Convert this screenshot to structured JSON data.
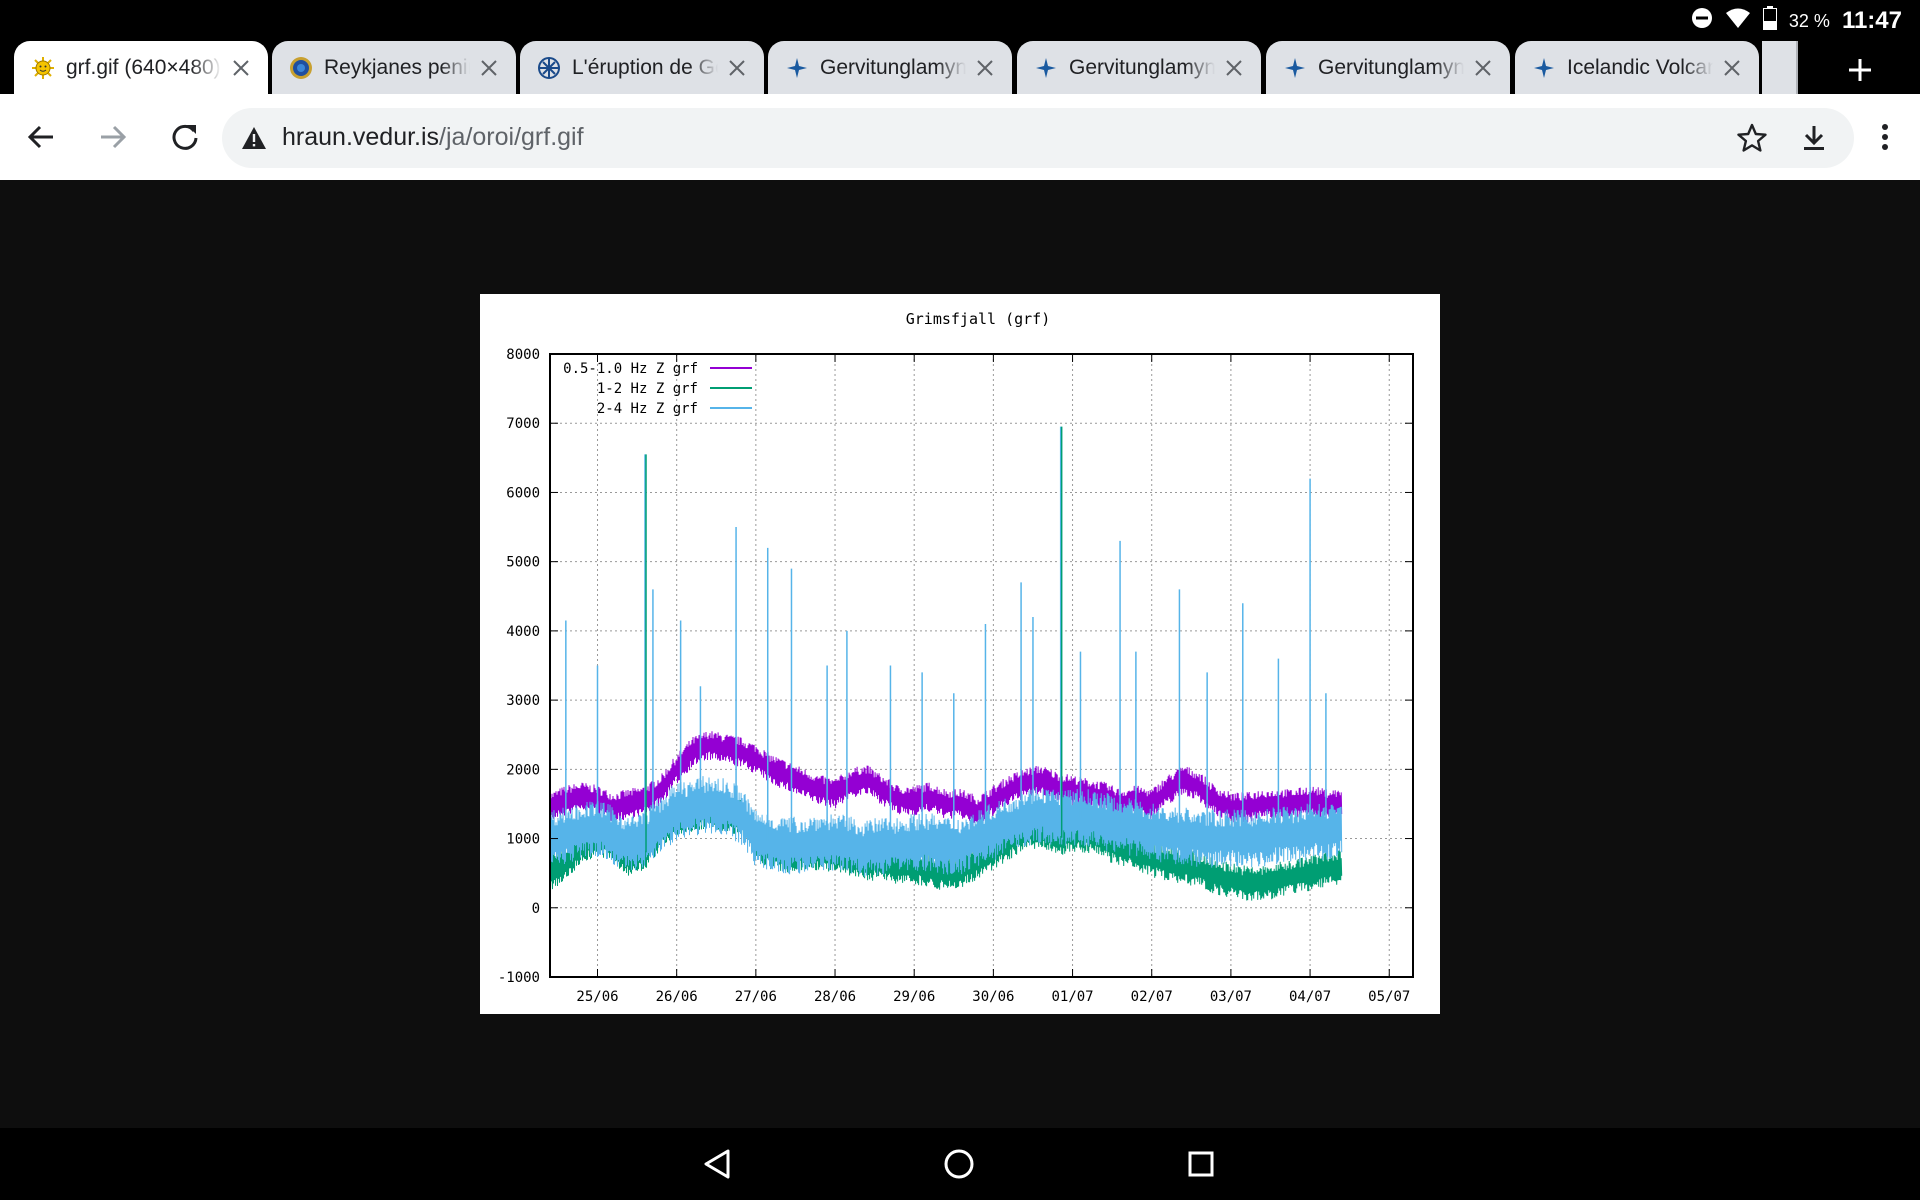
{
  "status_bar": {
    "battery_percent": "32 %",
    "time": "11:47"
  },
  "tabs": [
    {
      "title": "grf.gif (640×480)",
      "favicon": "sun-icon",
      "active": true
    },
    {
      "title": "Reykjanes peninsula",
      "favicon": "globe-icon",
      "active": false
    },
    {
      "title": "L'éruption de Geldingadalir",
      "favicon": "snowflake-icon",
      "active": false
    },
    {
      "title": "Gervitunglamyndir",
      "favicon": "satellite-icon",
      "active": false
    },
    {
      "title": "Gervitunglamyndir",
      "favicon": "satellite-icon",
      "active": false
    },
    {
      "title": "Gervitunglamyndir",
      "favicon": "satellite-icon",
      "active": false
    },
    {
      "title": "Icelandic Volcanoes",
      "favicon": "satellite-icon",
      "active": false
    }
  ],
  "address_bar": {
    "host": "hraun.vedur.is",
    "path": "/ja/oroi/grf.gif"
  },
  "colors": {
    "band_05_1": "#9400d3",
    "band_1_2": "#009e73",
    "band_2_4": "#56b4e9"
  },
  "chart_data": {
    "type": "line",
    "title": "Grimsfjall (grf)",
    "xlabel": "",
    "ylabel": "",
    "ylim": [
      -1000,
      8000
    ],
    "yticks": [
      -1000,
      0,
      1000,
      2000,
      3000,
      4000,
      5000,
      6000,
      7000,
      8000
    ],
    "xticks": [
      "25/06",
      "26/06",
      "27/06",
      "28/06",
      "29/06",
      "30/06",
      "01/07",
      "02/07",
      "03/07",
      "04/07",
      "05/07"
    ],
    "xlim": [
      24.4,
      35.3
    ],
    "grid": true,
    "legend_position": "top-left",
    "series": [
      {
        "name": "0.5-1.0 Hz Z grf",
        "color": "#9400d3",
        "x": [
          24.4,
          24.6,
          24.8,
          25.0,
          25.2,
          25.4,
          25.6,
          25.8,
          26.0,
          26.2,
          26.4,
          26.6,
          26.8,
          27.0,
          27.2,
          27.4,
          27.6,
          27.8,
          28.0,
          28.2,
          28.4,
          28.6,
          28.8,
          29.0,
          29.2,
          29.4,
          29.6,
          29.8,
          30.0,
          30.2,
          30.4,
          30.6,
          30.8,
          31.0,
          31.2,
          31.4,
          31.6,
          31.8,
          32.0,
          32.2,
          32.4,
          32.6,
          32.8,
          33.0,
          33.2,
          33.4,
          33.6,
          33.8,
          34.0,
          34.2,
          34.4
        ],
        "y": [
          1450,
          1550,
          1600,
          1550,
          1450,
          1500,
          1550,
          1700,
          2000,
          2250,
          2350,
          2300,
          2250,
          2150,
          2000,
          1900,
          1800,
          1700,
          1650,
          1800,
          1850,
          1700,
          1550,
          1550,
          1600,
          1500,
          1500,
          1400,
          1550,
          1700,
          1800,
          1850,
          1750,
          1700,
          1650,
          1600,
          1500,
          1550,
          1500,
          1700,
          1850,
          1750,
          1550,
          1450,
          1450,
          1500,
          1500,
          1500,
          1550,
          1500,
          1500
        ]
      },
      {
        "name": "1-2 Hz Z grf",
        "color": "#009e73",
        "x": [
          24.4,
          24.6,
          24.8,
          25.0,
          25.2,
          25.4,
          25.6,
          25.8,
          26.0,
          26.2,
          26.4,
          26.6,
          26.8,
          27.0,
          27.2,
          27.4,
          27.6,
          27.8,
          28.0,
          28.2,
          28.4,
          28.6,
          28.8,
          29.0,
          29.2,
          29.4,
          29.6,
          29.8,
          30.0,
          30.2,
          30.4,
          30.6,
          30.8,
          31.0,
          31.2,
          31.4,
          31.6,
          31.8,
          32.0,
          32.2,
          32.4,
          32.6,
          32.8,
          33.0,
          33.2,
          33.4,
          33.6,
          33.8,
          34.0,
          34.2,
          34.4
        ],
        "y": [
          500,
          650,
          900,
          1000,
          900,
          700,
          800,
          1100,
          1300,
          1350,
          1400,
          1350,
          1300,
          950,
          800,
          750,
          800,
          800,
          750,
          700,
          650,
          650,
          600,
          600,
          550,
          500,
          550,
          650,
          800,
          950,
          1100,
          1100,
          1000,
          1050,
          1050,
          950,
          850,
          800,
          700,
          650,
          600,
          550,
          450,
          400,
          350,
          350,
          400,
          450,
          500,
          550,
          600
        ]
      },
      {
        "name": "2-4 Hz Z grf",
        "color": "#56b4e9",
        "x": [
          24.4,
          24.6,
          24.8,
          25.0,
          25.2,
          25.4,
          25.6,
          25.8,
          26.0,
          26.2,
          26.4,
          26.6,
          26.8,
          27.0,
          27.2,
          27.4,
          27.6,
          27.8,
          28.0,
          28.2,
          28.4,
          28.6,
          28.8,
          29.0,
          29.2,
          29.4,
          29.6,
          29.8,
          30.0,
          30.2,
          30.4,
          30.6,
          30.8,
          31.0,
          31.2,
          31.4,
          31.6,
          31.8,
          32.0,
          32.2,
          32.4,
          32.6,
          32.8,
          33.0,
          33.2,
          33.4,
          33.6,
          33.8,
          34.0,
          34.2,
          34.4
        ],
        "y": [
          1000,
          1050,
          1100,
          1150,
          1050,
          900,
          1000,
          1200,
          1400,
          1450,
          1500,
          1450,
          1350,
          1000,
          950,
          900,
          900,
          950,
          950,
          900,
          850,
          900,
          900,
          950,
          950,
          900,
          900,
          1000,
          1100,
          1200,
          1300,
          1350,
          1300,
          1300,
          1300,
          1250,
          1200,
          1150,
          1100,
          1050,
          1050,
          1000,
          1000,
          1000,
          1000,
          1000,
          1050,
          1050,
          1100,
          1100,
          1150
        ],
        "spikes": [
          [
            24.6,
            4150
          ],
          [
            25.0,
            3500
          ],
          [
            25.6,
            6550
          ],
          [
            25.7,
            4600
          ],
          [
            26.05,
            4150
          ],
          [
            26.3,
            3200
          ],
          [
            26.75,
            5500
          ],
          [
            27.15,
            5200
          ],
          [
            27.45,
            4900
          ],
          [
            27.9,
            3500
          ],
          [
            28.15,
            4000
          ],
          [
            28.7,
            3500
          ],
          [
            29.1,
            3400
          ],
          [
            29.5,
            3100
          ],
          [
            29.9,
            4100
          ],
          [
            30.35,
            4700
          ],
          [
            30.5,
            4200
          ],
          [
            30.85,
            6950
          ],
          [
            31.1,
            3700
          ],
          [
            31.6,
            5300
          ],
          [
            31.8,
            3700
          ],
          [
            32.35,
            4600
          ],
          [
            32.7,
            3400
          ],
          [
            33.15,
            4400
          ],
          [
            33.6,
            3600
          ],
          [
            34.0,
            6200
          ],
          [
            34.2,
            3100
          ]
        ]
      }
    ]
  }
}
